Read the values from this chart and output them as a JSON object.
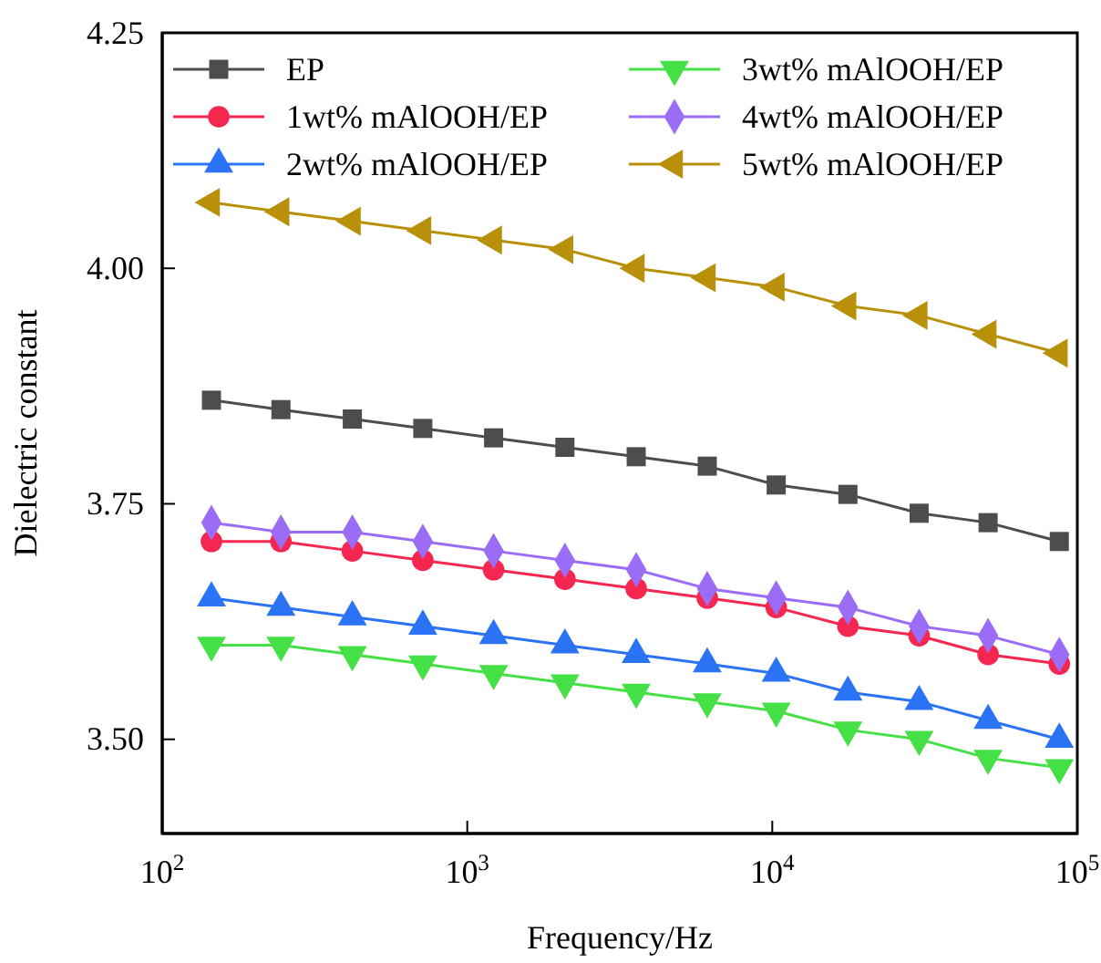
{
  "chart_data": {
    "type": "line",
    "xlabel": "Frequency/Hz",
    "ylabel": "Dielectric constant",
    "log": "x",
    "x": [
      145,
      245,
      420,
      715,
      1220,
      2090,
      3580,
      6120,
      10300,
      17700,
      30300,
      51000,
      87300
    ],
    "xlim": [
      100,
      100000
    ],
    "xticks": [
      {
        "value": 100,
        "label": "10$^{2}$"
      },
      {
        "value": 1000,
        "label": "10$^{3}$"
      },
      {
        "value": 10000,
        "label": "10$^{4}$"
      },
      {
        "value": 100000,
        "label": "10$^{5}$"
      }
    ],
    "ylim": [
      3.4,
      4.25
    ],
    "yticks": [
      {
        "value": 3.5,
        "label": "3.50"
      },
      {
        "value": 3.75,
        "label": "3.75"
      },
      {
        "value": 4.0,
        "label": "4.00"
      },
      {
        "value": 4.25,
        "label": "4.25"
      }
    ],
    "grid": false,
    "legend": "top",
    "line_style": "solid",
    "series": [
      {
        "name": "EP",
        "color": "#4d4d4d",
        "marker": "square",
        "values": [
          3.86,
          3.85,
          3.84,
          3.83,
          3.82,
          3.81,
          3.8,
          3.79,
          3.77,
          3.76,
          3.74,
          3.73,
          3.71
        ]
      },
      {
        "name": "1wt% mAlOOH/EP",
        "color": "#f5264f",
        "marker": "circle",
        "values": [
          3.71,
          3.71,
          3.7,
          3.69,
          3.68,
          3.67,
          3.66,
          3.65,
          3.64,
          3.62,
          3.61,
          3.59,
          3.58
        ]
      },
      {
        "name": "2wt% mAlOOH/EP",
        "color": "#2b73f5",
        "marker": "triangle",
        "values": [
          3.65,
          3.64,
          3.63,
          3.62,
          3.61,
          3.6,
          3.59,
          3.58,
          3.57,
          3.55,
          3.54,
          3.52,
          3.5
        ]
      },
      {
        "name": "3wt% mAlOOH/EP",
        "color": "#45e045",
        "marker": "triangle-down",
        "values": [
          3.6,
          3.6,
          3.59,
          3.58,
          3.57,
          3.56,
          3.55,
          3.54,
          3.53,
          3.51,
          3.5,
          3.48,
          3.47
        ]
      },
      {
        "name": "4wt% mAlOOH/EP",
        "color": "#9b6cf5",
        "marker": "diamond",
        "values": [
          3.73,
          3.72,
          3.72,
          3.71,
          3.7,
          3.69,
          3.68,
          3.66,
          3.65,
          3.64,
          3.62,
          3.61,
          3.59
        ]
      },
      {
        "name": "5wt% mAlOOH/EP",
        "color": "#b8900a",
        "marker": "triangle-left",
        "values": [
          4.07,
          4.06,
          4.05,
          4.04,
          4.03,
          4.02,
          4.0,
          3.99,
          3.98,
          3.96,
          3.95,
          3.93,
          3.91
        ]
      }
    ]
  }
}
